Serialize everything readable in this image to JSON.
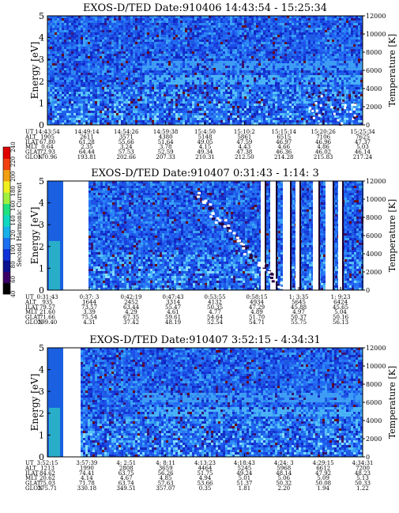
{
  "chart_data": [
    {
      "type": "heatmap",
      "title": "EXOS-D/TED   Date:910406   14:43:54 - 15:25:34",
      "ylabel": "Energy [eV]",
      "y2label": "Temperature [K]",
      "ylim": [
        0,
        5
      ],
      "y2lim": [
        0,
        12000
      ],
      "yticks": [
        "0",
        "1",
        "2",
        "3",
        "4",
        "5"
      ],
      "y2ticks": [
        "0",
        "2000",
        "4000",
        "6000",
        "8000",
        "10000",
        "12000"
      ],
      "row_labels": [
        "UT",
        "ALT",
        "ILAT",
        "MLT",
        "GLAT",
        "GLON"
      ],
      "columns": [
        [
          "14:43:54",
          "1905",
          "67.80",
          "0.64",
          "72.93",
          "170.96"
        ],
        [
          "14:49:14",
          "2611",
          "61.28",
          "2.35",
          "64.44",
          "193.81"
        ],
        [
          "14:54:26",
          "3571",
          "55.66",
          "3.24",
          "57.53",
          "202.66"
        ],
        [
          "14:59:38",
          "4380",
          "51.64",
          "3.78",
          "52.59",
          "207.33"
        ],
        [
          "15:4:50",
          "5148",
          "49.05",
          "4.15",
          "49.34",
          "210.31"
        ],
        [
          "15:10:2",
          "5861",
          "47.59",
          "4.43",
          "47.38",
          "212.50"
        ],
        [
          "15:15:14",
          "6515",
          "46.97",
          "4.66",
          "46.36",
          "214.28"
        ],
        [
          "15:20:26",
          "7106",
          "46.96",
          "4.86",
          "46.02",
          "215.83"
        ],
        [
          "15:25:34",
          "7625",
          "47.37",
          "5.03",
          "46.14",
          "217.24"
        ]
      ]
    },
    {
      "type": "heatmap",
      "title": "EXOS-D/TED   Date:910407   0:31:43 - 1:14: 3",
      "ylabel": "Energy [eV]",
      "y2label": "Temperature [K]",
      "ylim": [
        0,
        5
      ],
      "y2lim": [
        0,
        12000
      ],
      "yticks": [
        "0",
        "1",
        "2",
        "3",
        "4",
        "5"
      ],
      "y2ticks": [
        "0",
        "2000",
        "4000",
        "6000",
        "8000",
        "10000",
        "12000"
      ],
      "row_labels": [
        "UT",
        "ALT",
        "ILAT",
        "MLT",
        "GLAT",
        "GLON"
      ],
      "columns": [
        [
          "0:31:43",
          "935",
          "79.57",
          "21.60",
          "71.66",
          "299.40"
        ],
        [
          "0:37: 3",
          "1644",
          "73.57",
          "3.39",
          "75.54",
          "4.31"
        ],
        [
          "0:42:19",
          "2452",
          "63.44",
          "4.29",
          "67.35",
          "37.42"
        ],
        [
          "0:47:43",
          "3314",
          "55.47",
          "4.61",
          "59.61",
          "48.19"
        ],
        [
          "0:53:55",
          "4132",
          "50.35",
          "4.77",
          "54.64",
          "52.54"
        ],
        [
          "0:58:15",
          "4934",
          "47.29",
          "4.89",
          "51.70",
          "54.71"
        ],
        [
          "1: 3:35",
          "5645",
          "45.88",
          "4.97",
          "50.37",
          "55.75"
        ],
        [
          "1: 9:23",
          "6424",
          "45.65",
          "5.04",
          "50.16",
          "56.13"
        ]
      ]
    },
    {
      "type": "heatmap",
      "title": "EXOS-D/TED   Date:910407   3:52:15 - 4:34:31",
      "ylabel": "Energy [eV]",
      "y2label": "Temperature [K]",
      "ylim": [
        0,
        5
      ],
      "y2lim": [
        0,
        12000
      ],
      "yticks": [
        "0",
        "1",
        "2",
        "3",
        "4",
        "5"
      ],
      "y2ticks": [
        "0",
        "2000",
        "4000",
        "6000",
        "8000",
        "10000",
        "12000"
      ],
      "row_labels": [
        "UT",
        "ALT",
        "ILAT",
        "MLT",
        "GLAT",
        "GLON"
      ],
      "columns": [
        [
          "3:52:15",
          "1213",
          "84.62",
          "20.62",
          "75.03",
          "275.71"
        ],
        [
          "3:57:39",
          "1990",
          "74.41",
          "4.14",
          "71.78",
          "330.18"
        ],
        [
          "4: 2:51",
          "2808",
          "63.75",
          "4.67",
          "63.74",
          "349.51"
        ],
        [
          "4: 8:11",
          "3659",
          "56.26",
          "4.85",
          "57.63",
          "357.07"
        ],
        [
          "4:13:23",
          "4464",
          "51.75",
          "4.94",
          "53.66",
          "0.35"
        ],
        [
          "4:18:43",
          "5245",
          "49.24",
          "5.01",
          "51.37",
          "1.81"
        ],
        [
          "4:24: 3",
          "5968",
          "48.14",
          "5.06",
          "50.32",
          "2.20"
        ],
        [
          "4:29:15",
          "6612",
          "47.92",
          "5.09",
          "50.08",
          "1.94"
        ],
        [
          "4:34:31",
          "7200",
          "48.23",
          "5.13",
          "50.33",
          "1.22"
        ]
      ]
    }
  ],
  "colorbar": {
    "label": "Second Harmonic Current",
    "ticks": [
      "40",
      "60",
      "80",
      "100",
      "120",
      "140",
      "160",
      "180",
      "200",
      "220",
      "240"
    ],
    "colors": [
      "#000000",
      "#3a0066",
      "#0a1090",
      "#1030d8",
      "#1a70f0",
      "#18b0e8",
      "#10d8c0",
      "#20e080",
      "#a0f040",
      "#f0f020",
      "#f0a010",
      "#f04010",
      "#e00000"
    ]
  }
}
